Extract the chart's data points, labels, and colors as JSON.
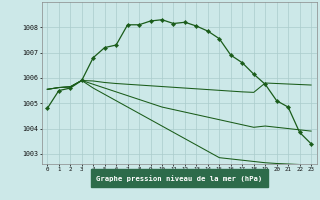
{
  "title": "Graphe pression niveau de la mer (hPa)",
  "bg_color": "#cce8e8",
  "grid_color": "#aacccc",
  "line_color": "#1a5c1a",
  "label_bg": "#2d6b4a",
  "label_fg": "#ffffff",
  "x_labels": [
    "0",
    "1",
    "2",
    "3",
    "4",
    "5",
    "6",
    "7",
    "8",
    "9",
    "10",
    "11",
    "12",
    "13",
    "14",
    "15",
    "16",
    "17",
    "18",
    "19",
    "20",
    "21",
    "22",
    "23"
  ],
  "ylim": [
    1002.6,
    1009.0
  ],
  "yticks": [
    1003,
    1004,
    1005,
    1006,
    1007,
    1008
  ],
  "series1": [
    1004.8,
    1005.5,
    1005.6,
    1005.9,
    1006.8,
    1007.2,
    1007.3,
    1008.1,
    1008.1,
    1008.25,
    1008.3,
    1008.15,
    1008.2,
    1008.05,
    1007.85,
    1007.55,
    1006.9,
    1006.6,
    1006.15,
    1005.75,
    1005.1,
    1004.85,
    1003.85,
    1003.4
  ],
  "series2": [
    1005.55,
    1005.62,
    1005.65,
    1005.9,
    1005.88,
    1005.82,
    1005.78,
    1005.75,
    1005.72,
    1005.69,
    1005.66,
    1005.63,
    1005.6,
    1005.57,
    1005.54,
    1005.51,
    1005.48,
    1005.45,
    1005.43,
    1005.8,
    1005.78,
    1005.76,
    1005.74,
    1005.72
  ],
  "series3": [
    1005.55,
    1005.62,
    1005.65,
    1005.9,
    1005.75,
    1005.6,
    1005.45,
    1005.3,
    1005.15,
    1005.0,
    1004.85,
    1004.75,
    1004.65,
    1004.55,
    1004.45,
    1004.35,
    1004.25,
    1004.15,
    1004.05,
    1004.1,
    1004.05,
    1004.0,
    1003.95,
    1003.9
  ],
  "series4": [
    1005.55,
    1005.62,
    1005.65,
    1005.9,
    1005.6,
    1005.35,
    1005.1,
    1004.85,
    1004.6,
    1004.35,
    1004.1,
    1003.85,
    1003.6,
    1003.35,
    1003.1,
    1002.85,
    1002.8,
    1002.75,
    1002.7,
    1002.65,
    1002.62,
    1002.6,
    1002.58,
    1002.56
  ]
}
